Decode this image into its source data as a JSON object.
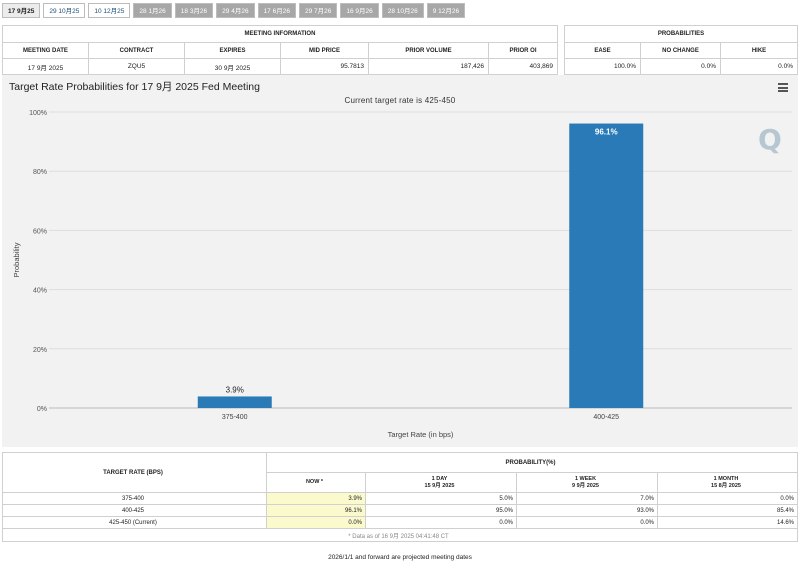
{
  "tabs": [
    {
      "label": "17 9月25",
      "state": "sel"
    },
    {
      "label": "29 10月25",
      "state": "w"
    },
    {
      "label": "10 12月25",
      "state": "w"
    },
    {
      "label": "28 1月26",
      "state": "g"
    },
    {
      "label": "18 3月26",
      "state": "g"
    },
    {
      "label": "29 4月26",
      "state": "g"
    },
    {
      "label": "17 6月26",
      "state": "g"
    },
    {
      "label": "29 7月26",
      "state": "g"
    },
    {
      "label": "16 9月26",
      "state": "g"
    },
    {
      "label": "28 10月26",
      "state": "g"
    },
    {
      "label": "9 12月26",
      "state": "g"
    }
  ],
  "meeting_info": {
    "heading": "MEETING INFORMATION",
    "columns": [
      "MEETING DATE",
      "CONTRACT",
      "EXPIRES",
      "MID PRICE",
      "PRIOR VOLUME",
      "PRIOR OI"
    ],
    "values": [
      "17 9月 2025",
      "ZQU5",
      "30 9月 2025",
      "95.7813",
      "187,426",
      "403,869"
    ]
  },
  "probabilities_box": {
    "heading": "PROBABILITIES",
    "columns": [
      "EASE",
      "NO CHANGE",
      "HIKE"
    ],
    "values": [
      "100.0%",
      "0.0%",
      "0.0%"
    ]
  },
  "chart": {
    "title": "Target Rate Probabilities for 17 9月 2025 Fed Meeting",
    "subtitle": "Current target rate is 425-450",
    "colors": {
      "bar": "#2a7ab8",
      "grid": "#dddddd"
    }
  },
  "chart_data": {
    "type": "bar",
    "categories": [
      "375-400",
      "400-425"
    ],
    "values": [
      3.9,
      96.1
    ],
    "data_labels": [
      "3.9%",
      "96.1%"
    ],
    "xlabel": "Target Rate (in bps)",
    "ylabel": "Probability",
    "ylim": [
      0,
      100
    ],
    "yticks": [
      "0%",
      "20%",
      "40%",
      "60%",
      "80%",
      "100%"
    ],
    "grid": true,
    "legend": "none"
  },
  "prob_table": {
    "col_target": "TARGET RATE (BPS)",
    "col_group": "PROBABILITY(%)",
    "subcols": [
      {
        "line1": "NOW *",
        "line2": ""
      },
      {
        "line1": "1 DAY",
        "line2": "15 9月 2025"
      },
      {
        "line1": "1 WEEK",
        "line2": "9 9月 2025"
      },
      {
        "line1": "1 MONTH",
        "line2": "15 8月 2025"
      }
    ],
    "rows": [
      {
        "rate": "375-400",
        "vals": [
          "3.9%",
          "5.0%",
          "7.0%",
          "0.0%"
        ]
      },
      {
        "rate": "400-425",
        "vals": [
          "96.1%",
          "95.0%",
          "93.0%",
          "85.4%"
        ]
      },
      {
        "rate": "425-450 (Current)",
        "vals": [
          "0.0%",
          "0.0%",
          "0.0%",
          "14.6%"
        ]
      }
    ],
    "note": "* Data as of 16 9月 2025 04:41:48 CT"
  },
  "footer": "2026/1/1 and forward are projected meeting dates"
}
